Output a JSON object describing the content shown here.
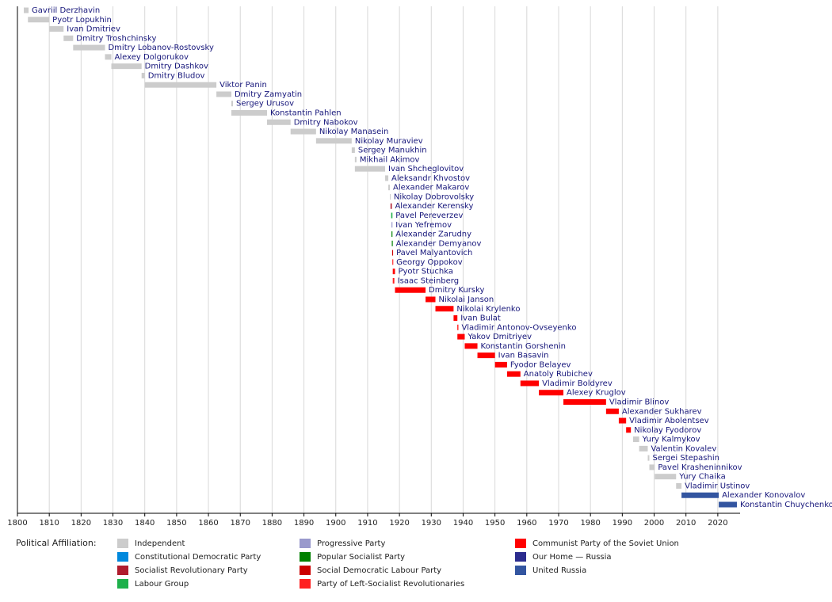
{
  "chart_data": {
    "type": "timeline",
    "xlim": [
      1800,
      2027
    ],
    "xticks": [
      1800,
      1810,
      1820,
      1830,
      1840,
      1850,
      1860,
      1870,
      1880,
      1890,
      1900,
      1910,
      1920,
      1930,
      1940,
      1950,
      1960,
      1970,
      1980,
      1990,
      2000,
      2010,
      2020
    ],
    "grid": true,
    "rows": [
      {
        "name": "Gavriil Derzhavin",
        "start": 1802,
        "end": 1803.5,
        "color": "#cccccc"
      },
      {
        "name": "Pyotr Lopukhin",
        "start": 1803.3,
        "end": 1810,
        "color": "#cccccc"
      },
      {
        "name": "Ivan Dmitriev",
        "start": 1810,
        "end": 1814.5,
        "color": "#cccccc"
      },
      {
        "name": "Dmitry Troshchinsky",
        "start": 1814.5,
        "end": 1817.5,
        "color": "#cccccc"
      },
      {
        "name": "Dmitry Lobanov-Rostovsky",
        "start": 1817.5,
        "end": 1827.5,
        "color": "#cccccc"
      },
      {
        "name": "Alexey Dolgorukov",
        "start": 1827.5,
        "end": 1829.5,
        "color": "#cccccc"
      },
      {
        "name": "Dmitry Dashkov",
        "start": 1829.5,
        "end": 1839,
        "color": "#cccccc"
      },
      {
        "name": "Dmitry Bludov",
        "start": 1839,
        "end": 1840,
        "color": "#cccccc"
      },
      {
        "name": "Viktor Panin",
        "start": 1840,
        "end": 1862.5,
        "color": "#cccccc"
      },
      {
        "name": "Dmitry Zamyatin",
        "start": 1862.5,
        "end": 1867.2,
        "color": "#cccccc"
      },
      {
        "name": "Sergey Urusov",
        "start": 1867.2,
        "end": 1867.7,
        "color": "#cccccc"
      },
      {
        "name": "Konstantin Pahlen",
        "start": 1867.2,
        "end": 1878.4,
        "color": "#cccccc"
      },
      {
        "name": "Dmitry Nabokov",
        "start": 1878.4,
        "end": 1885.8,
        "color": "#cccccc"
      },
      {
        "name": "Nikolay Manasein",
        "start": 1885.8,
        "end": 1893.8,
        "color": "#cccccc"
      },
      {
        "name": "Nikolay Muraviev",
        "start": 1893.8,
        "end": 1905,
        "color": "#cccccc"
      },
      {
        "name": "Sergey Manukhin",
        "start": 1905,
        "end": 1906,
        "color": "#cccccc"
      },
      {
        "name": "Mikhail Akimov",
        "start": 1906,
        "end": 1906.5,
        "color": "#cccccc"
      },
      {
        "name": "Ivan Shcheglovitov",
        "start": 1906,
        "end": 1915.5,
        "color": "#cccccc"
      },
      {
        "name": "Aleksandr Khvostov",
        "start": 1915.5,
        "end": 1916.5,
        "color": "#cccccc"
      },
      {
        "name": "Alexander Makarov",
        "start": 1916.5,
        "end": 1917,
        "color": "#cccccc"
      },
      {
        "name": "Nikolay Dobrovolsky",
        "start": 1917,
        "end": 1917.2,
        "color": "#cccccc"
      },
      {
        "name": "Alexander Kerensky",
        "start": 1917.2,
        "end": 1917.6,
        "color": "#b01c2e"
      },
      {
        "name": "Pavel Pereverzev",
        "start": 1917.4,
        "end": 1917.8,
        "color": "#1eb04b"
      },
      {
        "name": "Ivan Yefremov",
        "start": 1917.5,
        "end": 1917.8,
        "color": "#9999cc"
      },
      {
        "name": "Alexander Zarudny",
        "start": 1917.5,
        "end": 1917.8,
        "color": "#008000"
      },
      {
        "name": "Alexander Demyanov",
        "start": 1917.6,
        "end": 1917.9,
        "color": "#008000"
      },
      {
        "name": "Pavel Malyantovich",
        "start": 1917.7,
        "end": 1918,
        "color": "#cc0000"
      },
      {
        "name": "Georgy Oppokov",
        "start": 1917.8,
        "end": 1918,
        "color": "#ff0000"
      },
      {
        "name": "Pyotr Stuchka",
        "start": 1917.9,
        "end": 1918.6,
        "color": "#ff0000"
      },
      {
        "name": "Isaac Steinberg",
        "start": 1917.9,
        "end": 1918.4,
        "color": "#ff2020"
      },
      {
        "name": "Dmitry Kursky",
        "start": 1918.6,
        "end": 1928.2,
        "color": "#ff0000"
      },
      {
        "name": "Nikolai Janson",
        "start": 1928.2,
        "end": 1931.3,
        "color": "#ff0000"
      },
      {
        "name": "Nikolai Krylenko",
        "start": 1931.3,
        "end": 1937,
        "color": "#ff0000"
      },
      {
        "name": "Ivan Bulat",
        "start": 1937,
        "end": 1938.2,
        "color": "#ff0000"
      },
      {
        "name": "Vladimir Antonov-Ovseyenko",
        "start": 1938.2,
        "end": 1938.5,
        "color": "#ff0000"
      },
      {
        "name": "Yakov Dmitriyev",
        "start": 1938.2,
        "end": 1940.5,
        "color": "#ff0000"
      },
      {
        "name": "Konstantin Gorshenin",
        "start": 1940.5,
        "end": 1944.5,
        "color": "#ff0000"
      },
      {
        "name": "Ivan Basavin",
        "start": 1944.5,
        "end": 1950,
        "color": "#ff0000"
      },
      {
        "name": "Fyodor Belayev",
        "start": 1950,
        "end": 1953.8,
        "color": "#ff0000"
      },
      {
        "name": "Anatoly Rubichev",
        "start": 1953.8,
        "end": 1958,
        "color": "#ff0000"
      },
      {
        "name": "Vladimir Boldyrev",
        "start": 1958,
        "end": 1963.8,
        "color": "#ff0000"
      },
      {
        "name": "Alexey Kruglov",
        "start": 1963.8,
        "end": 1971.5,
        "color": "#ff0000"
      },
      {
        "name": "Vladimir Blinov",
        "start": 1971.5,
        "end": 1984.9,
        "color": "#ff0000"
      },
      {
        "name": "Alexander Sukharev",
        "start": 1984.9,
        "end": 1988.9,
        "color": "#ff0000"
      },
      {
        "name": "Vladimir Abolentsev",
        "start": 1988.9,
        "end": 1991.2,
        "color": "#ff0000"
      },
      {
        "name": "Nikolay Fyodorov",
        "start": 1991.2,
        "end": 1992.7,
        "color": "#ff0000"
      },
      {
        "name": "Yury Kalmykov",
        "start": 1993.4,
        "end": 1995.3,
        "color": "#cccccc"
      },
      {
        "name": "Valentin Kovalev",
        "start": 1995.3,
        "end": 1998,
        "color": "#cccccc"
      },
      {
        "name": "Sergei Stepashin",
        "start": 1998,
        "end": 1998.5,
        "color": "#cccccc"
      },
      {
        "name": "Pavel Krasheninnikov",
        "start": 1998.5,
        "end": 2000.2,
        "color": "#cccccc"
      },
      {
        "name": "Yury Chaika",
        "start": 2000.2,
        "end": 2006.9,
        "color": "#cccccc"
      },
      {
        "name": "Vladimir Ustinov",
        "start": 2006.9,
        "end": 2008.6,
        "color": "#cccccc"
      },
      {
        "name": "Alexander Konovalov",
        "start": 2008.6,
        "end": 2020.3,
        "color": "#3355a0"
      },
      {
        "name": "Konstantin Chuychenko",
        "start": 2020.3,
        "end": 2026,
        "color": "#3355a0"
      }
    ],
    "legend_title": "Political Affiliation:",
    "legend": [
      {
        "name": "Independent",
        "color": "#cccccc"
      },
      {
        "name": "Constitutional Democratic Party",
        "color": "#0088dd"
      },
      {
        "name": "Socialist Revolutionary Party",
        "color": "#b01c2e"
      },
      {
        "name": "Labour Group",
        "color": "#1eb04b"
      },
      {
        "name": "Progressive Party",
        "color": "#9999cc"
      },
      {
        "name": "Popular Socialist Party",
        "color": "#008000"
      },
      {
        "name": "Social Democratic Labour Party",
        "color": "#cc0000"
      },
      {
        "name": "Party of Left-Socialist Revolutionaries",
        "color": "#ff2020"
      },
      {
        "name": "Communist Party of the Soviet Union",
        "color": "#ff0000"
      },
      {
        "name": "Our Home — Russia",
        "color": "#2b2c8e"
      },
      {
        "name": "United Russia",
        "color": "#3355a0"
      }
    ]
  }
}
